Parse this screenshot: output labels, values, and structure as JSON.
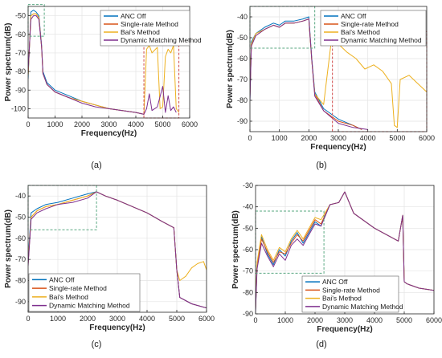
{
  "colors": {
    "anc_off": "#0072BD",
    "single_rate": "#D95319",
    "bai": "#EDB120",
    "dynamic": "#7E2F8E",
    "box_green": "#5aa882",
    "box_red": "#d04848",
    "axis": "#262626",
    "grid": "#e3e3e3"
  },
  "chart_data": [
    {
      "type": "line",
      "panel_label": "(a)",
      "xlabel": "Frequency(Hz)",
      "ylabel": "Power spectrum(dB)",
      "xlim": [
        0,
        6000
      ],
      "ylim": [
        -105,
        -45
      ],
      "xticks": [
        0,
        1000,
        2000,
        3000,
        4000,
        5000,
        6000
      ],
      "yticks": [
        -100,
        -90,
        -80,
        -70,
        -60,
        -50
      ],
      "grid": true,
      "legend_position": "top-right",
      "boxes": [
        {
          "color": "green",
          "x": [
            0,
            600
          ],
          "y": [
            -61,
            -44
          ]
        },
        {
          "color": "red",
          "x": [
            4300,
            5600
          ],
          "y": [
            -105,
            -65
          ]
        }
      ],
      "series": [
        {
          "name": "ANC Off",
          "color_key": "anc_off",
          "x": [
            0,
            100,
            200,
            300,
            400,
            500,
            550,
            700,
            1000,
            1500,
            2000,
            2500,
            3000,
            3500,
            4000,
            4300
          ],
          "y": [
            -84,
            -48,
            -47,
            -48,
            -50,
            -66,
            -80,
            -86,
            -90,
            -93,
            -96,
            -98,
            -100,
            -101,
            -102,
            -103
          ]
        },
        {
          "name": "Single-rate Method",
          "color_key": "single_rate",
          "x": [
            0,
            100,
            200,
            300,
            400,
            500,
            550,
            700,
            1000,
            1500,
            2000,
            2500,
            3000,
            3500,
            4000,
            4300
          ],
          "y": [
            -82,
            -50,
            -49,
            -49,
            -51,
            -67,
            -81,
            -87,
            -91,
            -94,
            -96,
            -98,
            -100,
            -101,
            -102,
            -103
          ]
        },
        {
          "name": "Bai's Method",
          "color_key": "bai",
          "x": [
            0,
            100,
            200,
            300,
            400,
            500,
            550,
            700,
            1000,
            1500,
            2000,
            2500,
            3000,
            3500,
            4000,
            4300,
            4400,
            4500,
            4600,
            4800,
            4900,
            5000,
            5100,
            5200,
            5300,
            5400,
            5500,
            5600
          ],
          "y": [
            -82,
            -50,
            -49,
            -49,
            -51,
            -67,
            -81,
            -87,
            -91,
            -94,
            -96,
            -98,
            -100,
            -101,
            -102,
            -103,
            -68,
            -66,
            -70,
            -67,
            -100,
            -99,
            -72,
            -68,
            -70,
            -66,
            -100,
            -102
          ]
        },
        {
          "name": "Dynamic Matching Method",
          "color_key": "dynamic",
          "x": [
            0,
            100,
            200,
            300,
            400,
            500,
            550,
            700,
            1000,
            1500,
            2000,
            2500,
            3000,
            3500,
            4000,
            4300,
            4400,
            4500,
            4600,
            4800,
            5000,
            5100,
            5200,
            5300,
            5400,
            5500
          ],
          "y": [
            -80,
            -52,
            -50,
            -50,
            -52,
            -67,
            -81,
            -87,
            -91,
            -94,
            -97,
            -99,
            -100,
            -101,
            -102,
            -103,
            -100,
            -92,
            -101,
            -99,
            -88,
            -102,
            -93,
            -101,
            -99,
            -102
          ]
        }
      ]
    },
    {
      "type": "line",
      "panel_label": "(b)",
      "xlabel": "Frequency(Hz)",
      "ylabel": "Power spectrum(dB)",
      "xlim": [
        0,
        6000
      ],
      "ylim": [
        -95,
        -35
      ],
      "xticks": [
        0,
        1000,
        2000,
        3000,
        4000,
        5000,
        6000
      ],
      "yticks": [
        -90,
        -80,
        -70,
        -60,
        -50,
        -40
      ],
      "grid": true,
      "legend_position": "top-right",
      "boxes": [
        {
          "color": "green",
          "x": [
            0,
            2200
          ],
          "y": [
            -55,
            -35
          ]
        },
        {
          "color": "red",
          "x": [
            2800,
            6000
          ],
          "y": [
            -95,
            -47
          ]
        }
      ],
      "series": [
        {
          "name": "ANC Off",
          "color_key": "anc_off",
          "x": [
            0,
            50,
            200,
            500,
            800,
            1000,
            1200,
            1500,
            1800,
            2000,
            2100,
            2200,
            2500,
            3000,
            3500,
            3800
          ],
          "y": [
            -80,
            -52,
            -48,
            -45,
            -43,
            -44,
            -42,
            -42,
            -41,
            -40,
            -60,
            -76,
            -84,
            -89,
            -92,
            -94
          ]
        },
        {
          "name": "Single-rate Method",
          "color_key": "single_rate",
          "x": [
            0,
            50,
            200,
            500,
            800,
            1000,
            1200,
            1500,
            1800,
            2000,
            2100,
            2200,
            2500,
            3000,
            3500,
            3800
          ],
          "y": [
            -78,
            -53,
            -49,
            -46,
            -44,
            -45,
            -43,
            -43,
            -42,
            -41,
            -61,
            -77,
            -85,
            -90,
            -92,
            -94
          ]
        },
        {
          "name": "Bai's Method",
          "color_key": "bai",
          "x": [
            0,
            50,
            200,
            500,
            800,
            1000,
            1200,
            1500,
            1800,
            2000,
            2100,
            2200,
            2500,
            2800,
            3000,
            3300,
            3600,
            3900,
            4200,
            4500,
            4800,
            4900,
            5000,
            5100,
            5400,
            5700,
            6000
          ],
          "y": [
            -78,
            -53,
            -48,
            -46,
            -44,
            -45,
            -43,
            -43,
            -42,
            -41,
            -61,
            -77,
            -82,
            -47,
            -53,
            -57,
            -60,
            -65,
            -63,
            -66,
            -72,
            -92,
            -93,
            -70,
            -68,
            -72,
            -76
          ]
        },
        {
          "name": "Dynamic Matching Method",
          "color_key": "dynamic",
          "x": [
            0,
            50,
            200,
            500,
            800,
            1000,
            1200,
            1500,
            1800,
            2000,
            2100,
            2200,
            2500,
            3000,
            3500,
            4000
          ],
          "y": [
            -80,
            -54,
            -49,
            -46,
            -44,
            -45,
            -43,
            -43,
            -42,
            -41,
            -61,
            -78,
            -85,
            -91,
            -93,
            -94
          ]
        }
      ]
    },
    {
      "type": "line",
      "panel_label": "(c)",
      "xlabel": "Frequency(Hz)",
      "ylabel": "Power spectrum(dB)",
      "xlim": [
        0,
        6000
      ],
      "ylim": [
        -95,
        -35
      ],
      "xticks": [
        0,
        1000,
        2000,
        3000,
        4000,
        5000,
        6000
      ],
      "yticks": [
        -90,
        -80,
        -70,
        -60,
        -50,
        -40
      ],
      "grid": true,
      "legend_position": "bottom-left",
      "boxes": [
        {
          "color": "green",
          "x": [
            0,
            2300
          ],
          "y": [
            -56,
            -35
          ]
        }
      ],
      "series": [
        {
          "name": "ANC Off",
          "color_key": "anc_off",
          "x": [
            0,
            100,
            300,
            600,
            1000,
            1500,
            2000,
            2300,
            2600,
            3000,
            3500,
            4000,
            4500,
            4900,
            5000,
            5100,
            5500,
            6000
          ],
          "y": [
            -70,
            -48,
            -46,
            -44,
            -43,
            -41,
            -39,
            -38,
            -40,
            -42,
            -45,
            -48,
            -52,
            -55,
            -75,
            -88,
            -91,
            -93
          ]
        },
        {
          "name": "Single-rate Method",
          "color_key": "single_rate",
          "x": [
            0,
            100,
            300,
            600,
            1000,
            1500,
            2000,
            2300,
            2600,
            3000,
            3500,
            4000,
            4500,
            4900,
            5000,
            5100,
            5500,
            6000
          ],
          "y": [
            -72,
            -50,
            -47,
            -45,
            -44,
            -42,
            -40,
            -38,
            -40,
            -42,
            -45,
            -48,
            -52,
            -55,
            -75,
            -88,
            -91,
            -93
          ]
        },
        {
          "name": "Bai's Method",
          "color_key": "bai",
          "x": [
            0,
            100,
            300,
            600,
            1000,
            1500,
            2000,
            2300,
            2600,
            3000,
            3500,
            4000,
            4500,
            4900,
            5000,
            5100,
            5300,
            5500,
            5700,
            5900,
            6000
          ],
          "y": [
            -72,
            -50,
            -47,
            -45,
            -44,
            -42,
            -40,
            -38,
            -40,
            -42,
            -45,
            -48,
            -52,
            -55,
            -75,
            -80,
            -78,
            -74,
            -72,
            -71,
            -75
          ]
        },
        {
          "name": "Dynamic Matching Method",
          "color_key": "dynamic",
          "x": [
            0,
            100,
            300,
            600,
            1000,
            1500,
            2000,
            2300,
            2600,
            3000,
            3500,
            4000,
            4500,
            4900,
            5000,
            5100,
            5500,
            6000
          ],
          "y": [
            -73,
            -51,
            -48,
            -46,
            -44,
            -43,
            -41,
            -38,
            -40,
            -42,
            -45,
            -48,
            -52,
            -55,
            -75,
            -88,
            -91,
            -93
          ]
        }
      ]
    },
    {
      "type": "line",
      "panel_label": "(d)",
      "xlabel": "Frequency(Hz)",
      "ylabel": "Power spectrum(dB)",
      "xlim": [
        0,
        6000
      ],
      "ylim": [
        -90,
        -30
      ],
      "xticks": [
        0,
        1000,
        2000,
        3000,
        4000,
        5000,
        6000
      ],
      "yticks": [
        -90,
        -80,
        -70,
        -60,
        -50,
        -40,
        -30
      ],
      "grid": true,
      "legend_position": "bottom-right",
      "boxes": [
        {
          "color": "green",
          "x": [
            0,
            2300
          ],
          "y": [
            -71,
            -42
          ]
        }
      ],
      "series": [
        {
          "name": "ANC Off",
          "color_key": "anc_off",
          "x": [
            0,
            50,
            200,
            400,
            600,
            800,
            1000,
            1200,
            1400,
            1600,
            1800,
            2000,
            2200,
            2500,
            2800,
            3000,
            3300,
            3600,
            4000,
            4400,
            4800,
            4950,
            5000,
            5100,
            5500,
            6000
          ],
          "y": [
            -89,
            -67,
            -54,
            -62,
            -67,
            -60,
            -63,
            -56,
            -52,
            -57,
            -52,
            -47,
            -49,
            -39,
            -38,
            -33,
            -43,
            -46,
            -50,
            -53,
            -56,
            -44,
            -75,
            -76,
            -78,
            -79
          ]
        },
        {
          "name": "Single-rate Method",
          "color_key": "single_rate",
          "x": [
            0,
            50,
            200,
            400,
            600,
            800,
            1000,
            1200,
            1400,
            1600,
            1800,
            2000,
            2200,
            2500,
            2800,
            3000,
            3300,
            3600,
            4000,
            4400,
            4800,
            4950,
            5000,
            5100,
            5500,
            6000
          ],
          "y": [
            -88,
            -68,
            -55,
            -61,
            -66,
            -61,
            -62,
            -57,
            -53,
            -56,
            -51,
            -46,
            -48,
            -39,
            -38,
            -33,
            -43,
            -46,
            -50,
            -53,
            -56,
            -44,
            -75,
            -76,
            -78,
            -79
          ]
        },
        {
          "name": "Bai's Method",
          "color_key": "bai",
          "x": [
            0,
            50,
            200,
            400,
            600,
            800,
            1000,
            1200,
            1400,
            1600,
            1800,
            2000,
            2200,
            2500,
            2800,
            3000,
            3300,
            3600,
            4000,
            4400,
            4800,
            4950,
            5000,
            5100,
            5500,
            6000
          ],
          "y": [
            -88,
            -66,
            -53,
            -60,
            -65,
            -59,
            -61,
            -55,
            -51,
            -55,
            -50,
            -45,
            -46,
            -39,
            -38,
            -33,
            -43,
            -46,
            -50,
            -53,
            -56,
            -44,
            -75,
            -76,
            -78,
            -79
          ]
        },
        {
          "name": "Dynamic Matching Method",
          "color_key": "dynamic",
          "x": [
            0,
            50,
            200,
            400,
            600,
            800,
            1000,
            1200,
            1400,
            1600,
            1800,
            2000,
            2200,
            2500,
            2800,
            3000,
            3300,
            3600,
            4000,
            4400,
            4800,
            4950,
            5000,
            5100,
            5500,
            6000
          ],
          "y": [
            -89,
            -69,
            -57,
            -63,
            -68,
            -62,
            -65,
            -58,
            -55,
            -58,
            -53,
            -48,
            -49,
            -39,
            -38,
            -33,
            -43,
            -46,
            -50,
            -53,
            -56,
            -44,
            -75,
            -76,
            -78,
            -79
          ]
        }
      ]
    }
  ]
}
